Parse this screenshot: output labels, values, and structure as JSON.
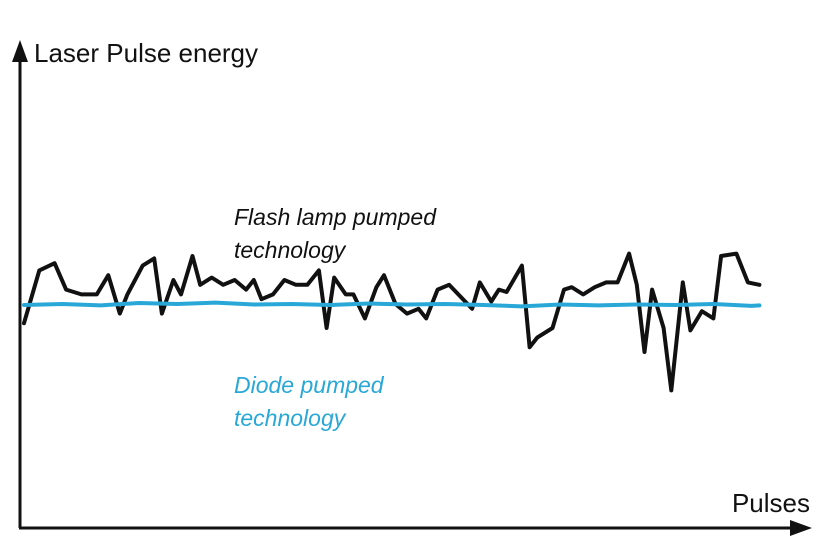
{
  "chart_data": {
    "type": "line",
    "ylabel": "Laser Pulse energy",
    "xlabel": "Pulses",
    "ylim": [
      0,
      100
    ],
    "xlim": [
      0,
      100
    ],
    "series": [
      {
        "name": "Flash lamp pumped technology",
        "label_lines": [
          "Flash lamp pumped",
          "technology"
        ],
        "color": "#111111",
        "x": [
          0,
          2,
          4,
          5.5,
          7.5,
          9.5,
          11,
          12.5,
          13.5,
          15.5,
          17,
          18,
          19.5,
          20.5,
          22,
          23,
          24.5,
          26,
          27.5,
          29,
          30,
          31,
          32.5,
          34,
          35.5,
          37,
          38.5,
          39.5,
          40.5,
          42,
          43,
          44.5,
          46,
          47,
          48.5,
          50,
          51.5,
          52.5,
          54,
          55.5,
          57,
          58.5,
          59.5,
          61,
          62,
          63,
          65,
          66,
          67,
          69,
          70.5,
          71.5,
          73,
          74.5,
          76,
          77.5,
          79,
          80,
          81,
          82,
          83.5,
          84.5,
          86,
          87,
          88.5,
          90,
          91,
          93,
          94.5,
          96
        ],
        "y": [
          41,
          52,
          53.5,
          48,
          47,
          47,
          51,
          43,
          47,
          53,
          54.5,
          43,
          50,
          47,
          55,
          49,
          50.5,
          49,
          50,
          48,
          50,
          46,
          47,
          50,
          49,
          49,
          52,
          40,
          50.5,
          47,
          47,
          42,
          48.5,
          51,
          45,
          43,
          44,
          42,
          48,
          49,
          46.5,
          44,
          49.5,
          45.5,
          48,
          47.5,
          53,
          36,
          38,
          40,
          48,
          48.5,
          47,
          48.5,
          49.5,
          49.5,
          55.5,
          49,
          35,
          48,
          40,
          27,
          49.5,
          39.5,
          43.5,
          42,
          55,
          55.5,
          49.5,
          49
        ]
      },
      {
        "name": "Diode pumped technology",
        "label_lines": [
          "Diode pumped",
          "technology"
        ],
        "color": "#29a8d8",
        "x": [
          0,
          5,
          10,
          15,
          20,
          25,
          30,
          35,
          40,
          45,
          50,
          55,
          60,
          65,
          70,
          75,
          80,
          85,
          90,
          95,
          96
        ],
        "y": [
          44.8,
          45,
          44.7,
          45.2,
          45,
          45.3,
          44.9,
          45,
          44.8,
          45.1,
          44.9,
          45,
          44.8,
          44.5,
          44.9,
          44.7,
          44.9,
          44.8,
          45,
          44.6,
          44.7
        ]
      }
    ]
  }
}
